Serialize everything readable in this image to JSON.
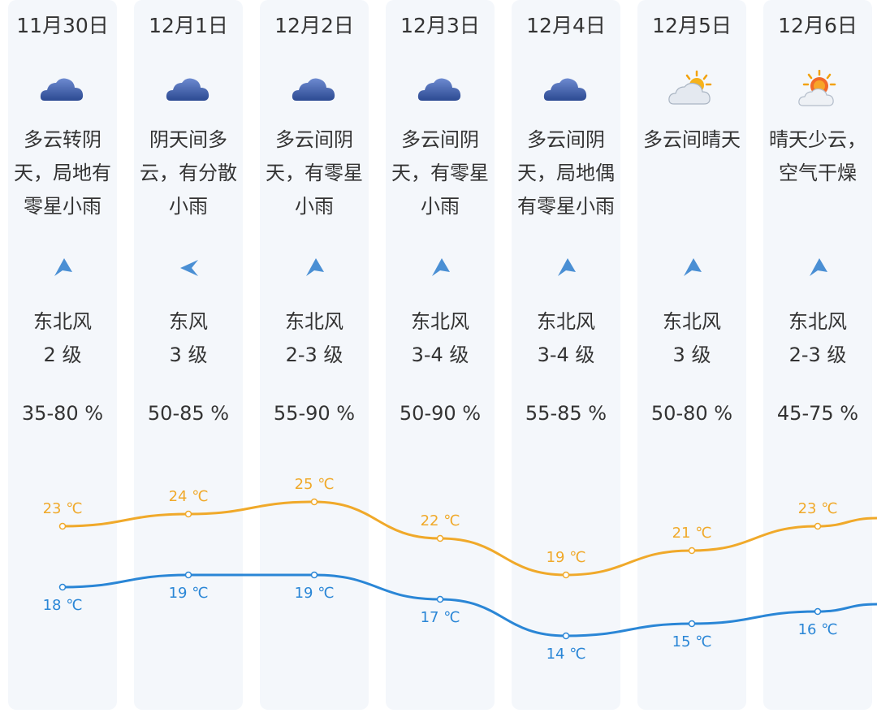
{
  "colors": {
    "high": "#f0a92a",
    "low": "#2a86d6",
    "column_bg": "#f4f7fb",
    "cloud": "#3b5aa3"
  },
  "temp_unit": "℃",
  "days": [
    {
      "date": "11月30日",
      "icon": "cloudy-icon",
      "desc_lines": [
        "多云转阴",
        "天，局地有",
        "零星小雨"
      ],
      "wind_dir": "东北风",
      "wind_level": "2 级",
      "humidity": "35-80 %",
      "high": 23,
      "low": 18,
      "high_label": "23 ℃",
      "low_label": "18 ℃"
    },
    {
      "date": "12月1日",
      "icon": "cloudy-icon",
      "desc_lines": [
        "阴天间多",
        "云，有分散",
        "小雨"
      ],
      "wind_dir": "东风",
      "wind_level": "3 级",
      "humidity": "50-85 %",
      "high": 24,
      "low": 19,
      "high_label": "24 ℃",
      "low_label": "19 ℃"
    },
    {
      "date": "12月2日",
      "icon": "cloudy-icon",
      "desc_lines": [
        "多云间阴",
        "天，有零星",
        "小雨"
      ],
      "wind_dir": "东北风",
      "wind_level": "2-3 级",
      "humidity": "55-90 %",
      "high": 25,
      "low": 19,
      "high_label": "25 ℃",
      "low_label": "19 ℃"
    },
    {
      "date": "12月3日",
      "icon": "cloudy-icon",
      "desc_lines": [
        "多云间阴",
        "天，有零星",
        "小雨"
      ],
      "wind_dir": "东北风",
      "wind_level": "3-4 级",
      "humidity": "50-90 %",
      "high": 22,
      "low": 17,
      "high_label": "22 ℃",
      "low_label": "17 ℃"
    },
    {
      "date": "12月4日",
      "icon": "cloudy-icon",
      "desc_lines": [
        "多云间阴",
        "天，局地偶",
        "有零星小雨"
      ],
      "wind_dir": "东北风",
      "wind_level": "3-4 级",
      "humidity": "55-85 %",
      "high": 19,
      "low": 14,
      "high_label": "19 ℃",
      "low_label": "14 ℃"
    },
    {
      "date": "12月5日",
      "icon": "partly-sunny-icon",
      "desc_lines": [
        "多云间晴天"
      ],
      "wind_dir": "东北风",
      "wind_level": "3 级",
      "humidity": "50-80 %",
      "high": 21,
      "low": 15,
      "high_label": "21 ℃",
      "low_label": "15 ℃"
    },
    {
      "date": "12月6日",
      "icon": "sunny-few-clouds-icon",
      "desc_lines": [
        "晴天少云，",
        "空气干燥"
      ],
      "wind_dir": "东北风",
      "wind_level": "2-3 级",
      "humidity": "45-75 %",
      "high": 23,
      "low": 16,
      "high_label": "23 ℃",
      "low_label": "16 ℃"
    }
  ]
}
